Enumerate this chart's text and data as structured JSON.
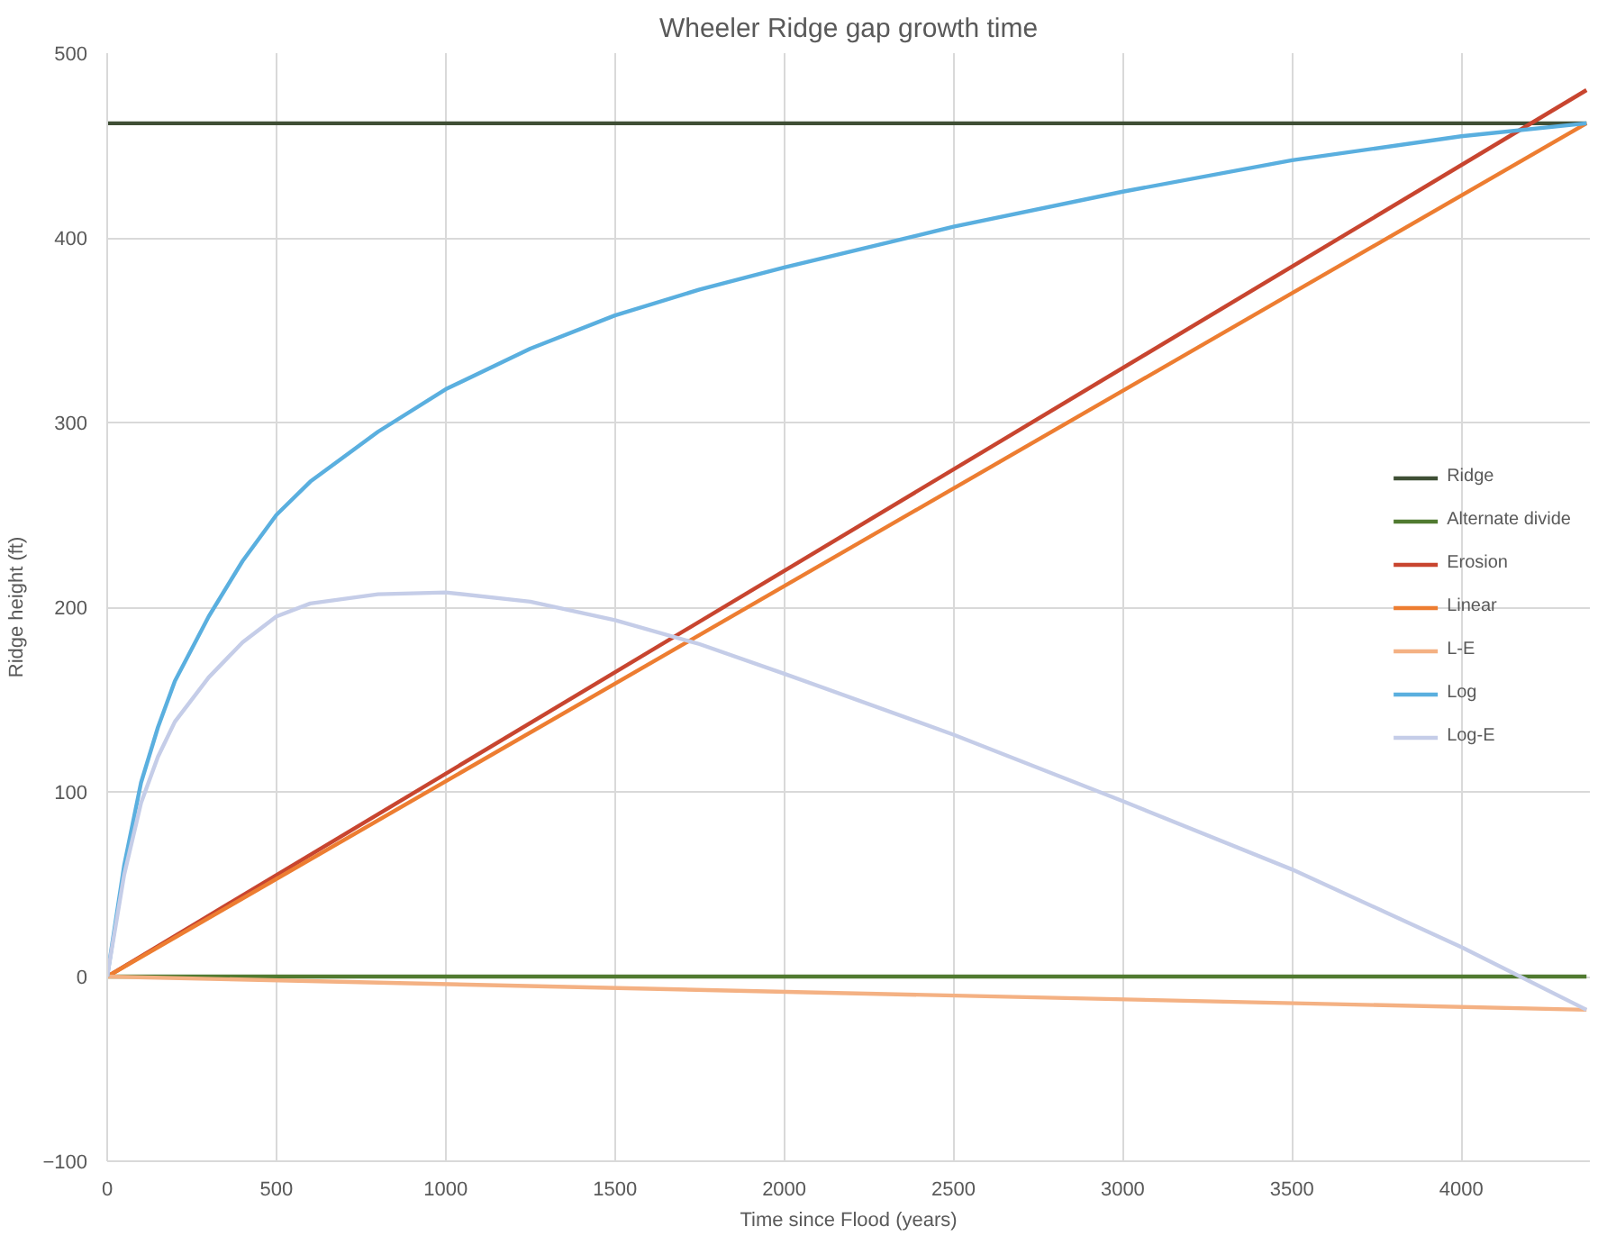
{
  "chart_data": {
    "type": "line",
    "title": "Wheeler Ridge gap growth time",
    "xlabel": "Time since Flood (years)",
    "ylabel": "Ridge height (ft)",
    "xlim": [
      0,
      4380
    ],
    "ylim": [
      -100,
      500
    ],
    "xticks": [
      0,
      500,
      1000,
      1500,
      2000,
      2500,
      3000,
      3500,
      4000
    ],
    "yticks": [
      -100,
      0,
      100,
      200,
      300,
      400,
      500
    ],
    "grid": true,
    "legend": "right",
    "marker": "none",
    "line_style": "solid",
    "series": [
      {
        "name": "Ridge",
        "color": "#3f4f35",
        "x": [
          0,
          4370
        ],
        "values": [
          462,
          462
        ]
      },
      {
        "name": "Alternate divide",
        "color": "#507a30",
        "x": [
          0,
          4370
        ],
        "values": [
          0,
          0
        ]
      },
      {
        "name": "Erosion",
        "color": "#c8452f",
        "x": [
          0,
          4370
        ],
        "values": [
          0,
          480
        ]
      },
      {
        "name": "Linear",
        "color": "#ed7d31",
        "x": [
          0,
          4370
        ],
        "values": [
          0,
          462
        ]
      },
      {
        "name": "L-E",
        "color": "#f4b183",
        "x": [
          0,
          4370
        ],
        "values": [
          0,
          -18
        ]
      },
      {
        "name": "Log",
        "color": "#5aafdf",
        "x": [
          0,
          50,
          100,
          150,
          200,
          300,
          400,
          500,
          600,
          800,
          1000,
          1250,
          1500,
          1750,
          2000,
          2500,
          3000,
          3500,
          4000,
          4370
        ],
        "values": [
          0,
          60,
          105,
          135,
          160,
          195,
          225,
          250,
          268,
          295,
          318,
          340,
          358,
          372,
          384,
          406,
          425,
          442,
          455,
          462
        ]
      },
      {
        "name": "Log-E",
        "color": "#c5cde8",
        "x": [
          0,
          50,
          100,
          150,
          200,
          300,
          400,
          500,
          600,
          800,
          1000,
          1250,
          1500,
          1750,
          2000,
          2500,
          3000,
          3500,
          4000,
          4370
        ],
        "values": [
          0,
          55,
          94,
          119,
          138,
          162,
          181,
          195,
          202,
          207,
          208,
          203,
          193,
          180,
          164,
          131,
          95,
          58,
          16,
          -18
        ]
      }
    ]
  }
}
